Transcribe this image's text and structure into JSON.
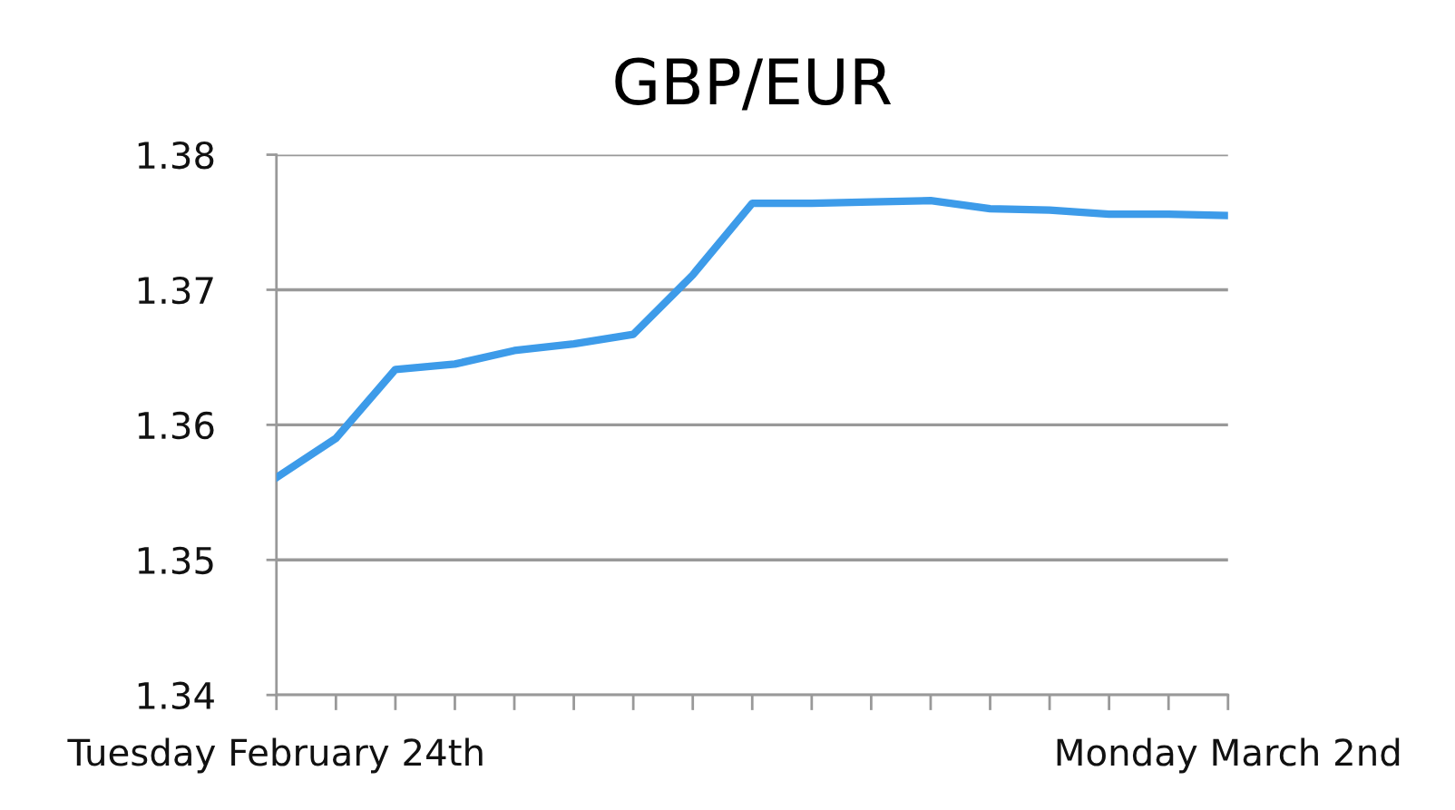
{
  "chart_data": {
    "type": "line",
    "title": "GBP/EUR",
    "categories": [
      "Tuesday February 24th",
      null,
      null,
      null,
      null,
      null,
      null,
      null,
      null,
      null,
      null,
      null,
      null,
      null,
      null,
      null,
      "Monday March 2nd"
    ],
    "series": [
      {
        "color": "#3d9be9",
        "values": [
          1.3561,
          1.359,
          1.3641,
          1.3645,
          1.3655,
          1.366,
          1.3667,
          1.3711,
          1.3764,
          1.3764,
          1.3765,
          1.3766,
          1.376,
          1.3759,
          1.3756,
          1.3756,
          1.3755
        ]
      }
    ],
    "ylim": [
      1.34,
      1.38
    ],
    "yticks": [
      1.34,
      1.35,
      1.36,
      1.37,
      1.38
    ],
    "grid": "y",
    "legend": false,
    "marker": "none",
    "line_style": "solid"
  }
}
